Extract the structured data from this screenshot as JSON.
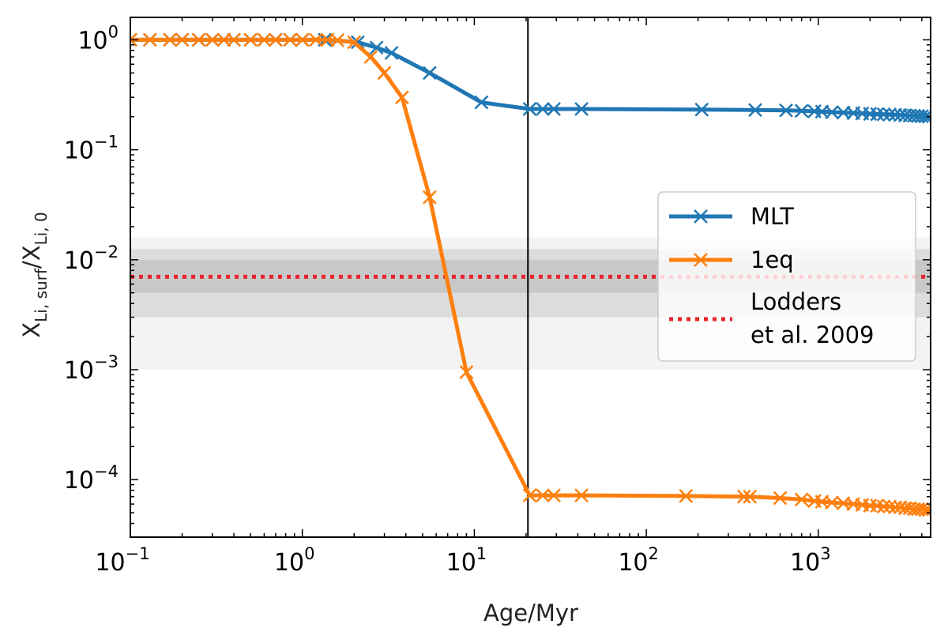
{
  "chart_data": {
    "type": "line",
    "xscale": "log",
    "yscale": "log",
    "xlim": [
      0.1,
      4500
    ],
    "ylim": [
      3e-05,
      1.6
    ],
    "xlabel": "Age/Myr",
    "ylabel_main": "X",
    "ylabel_sub1": "Li, surf",
    "ylabel_sep": "/X",
    "ylabel_sub2": "Li, 0",
    "x_ticks": [
      {
        "base": "10",
        "exp": "−1",
        "value": 0.1
      },
      {
        "base": "10",
        "exp": "0",
        "value": 1
      },
      {
        "base": "10",
        "exp": "1",
        "value": 10
      },
      {
        "base": "10",
        "exp": "2",
        "value": 100
      },
      {
        "base": "10",
        "exp": "3",
        "value": 1000
      }
    ],
    "y_ticks": [
      {
        "base": "10",
        "exp": "0",
        "value": 1
      },
      {
        "base": "10",
        "exp": "−1",
        "value": 0.1
      },
      {
        "base": "10",
        "exp": "−2",
        "value": 0.01
      },
      {
        "base": "10",
        "exp": "−3",
        "value": 0.001
      },
      {
        "base": "10",
        "exp": "−4",
        "value": 0.0001
      }
    ],
    "vertical_line": {
      "x": 20.5,
      "color": "#000000"
    },
    "bands": [
      {
        "ymin": 0.001,
        "ymax": 0.016,
        "color": "#f3f3f3"
      },
      {
        "ymin": 0.003,
        "ymax": 0.0125,
        "color": "#dcdcdc"
      },
      {
        "ymin": 0.005,
        "ymax": 0.01,
        "color": "#c8c8c8"
      }
    ],
    "reference_line": {
      "name": "Lodders",
      "name_line2": "et al. 2009",
      "y": 0.007,
      "color": "#e8242c"
    },
    "series": [
      {
        "name": "MLT",
        "color": "#1f77b4",
        "x": [
          0.1,
          0.13,
          0.17,
          0.2,
          0.25,
          0.3,
          0.35,
          0.4,
          0.5,
          0.6,
          0.7,
          0.85,
          1.0,
          1.35,
          2.1,
          2.7,
          3.3,
          5.5,
          11,
          21,
          25,
          29,
          42,
          210,
          430,
          650,
          800,
          950,
          1050,
          1200,
          1400,
          1600,
          1800,
          2000,
          2200,
          2400,
          2600,
          2800,
          3000,
          3200,
          3400,
          3600,
          3800,
          4000,
          4200,
          4400
        ],
        "y": [
          1.0,
          1.0,
          1.0,
          1.0,
          1.0,
          1.0,
          1.0,
          1.0,
          1.0,
          1.0,
          1.0,
          1.0,
          1.0,
          1.0,
          0.95,
          0.85,
          0.76,
          0.5,
          0.27,
          0.235,
          0.235,
          0.235,
          0.235,
          0.232,
          0.23,
          0.228,
          0.226,
          0.224,
          0.222,
          0.22,
          0.218,
          0.216,
          0.214,
          0.212,
          0.211,
          0.21,
          0.209,
          0.208,
          0.207,
          0.206,
          0.205,
          0.204,
          0.203,
          0.202,
          0.201,
          0.2
        ]
      },
      {
        "name": "1eq",
        "color": "#ff7f0e",
        "x": [
          0.1,
          0.13,
          0.17,
          0.2,
          0.25,
          0.3,
          0.35,
          0.4,
          0.5,
          0.6,
          0.7,
          0.85,
          1.0,
          1.2,
          1.4,
          1.6,
          2.0,
          2.5,
          3.0,
          3.8,
          5.5,
          9.0,
          21,
          25,
          29,
          42,
          170,
          370,
          400,
          600,
          800,
          950,
          1050,
          1200,
          1400,
          1600,
          1800,
          2000,
          2200,
          2400,
          2600,
          2800,
          3000,
          3200,
          3400,
          3600,
          3800,
          4000,
          4200,
          4400
        ],
        "y": [
          1.0,
          1.0,
          1.0,
          1.0,
          1.0,
          1.0,
          1.0,
          1.0,
          1.0,
          1.0,
          1.0,
          1.0,
          1.0,
          1.0,
          1.0,
          0.99,
          0.95,
          0.7,
          0.5,
          0.3,
          0.037,
          0.00095,
          7.2e-05,
          7.2e-05,
          7.2e-05,
          7.2e-05,
          7.1e-05,
          7e-05,
          7e-05,
          6.8e-05,
          6.6e-05,
          6.4e-05,
          6.3e-05,
          6.2e-05,
          6.1e-05,
          6e-05,
          5.9e-05,
          5.8e-05,
          5.8e-05,
          5.7e-05,
          5.7e-05,
          5.6e-05,
          5.6e-05,
          5.5e-05,
          5.5e-05,
          5.4e-05,
          5.4e-05,
          5.4e-05,
          5.3e-05,
          5.3e-05
        ]
      }
    ]
  }
}
